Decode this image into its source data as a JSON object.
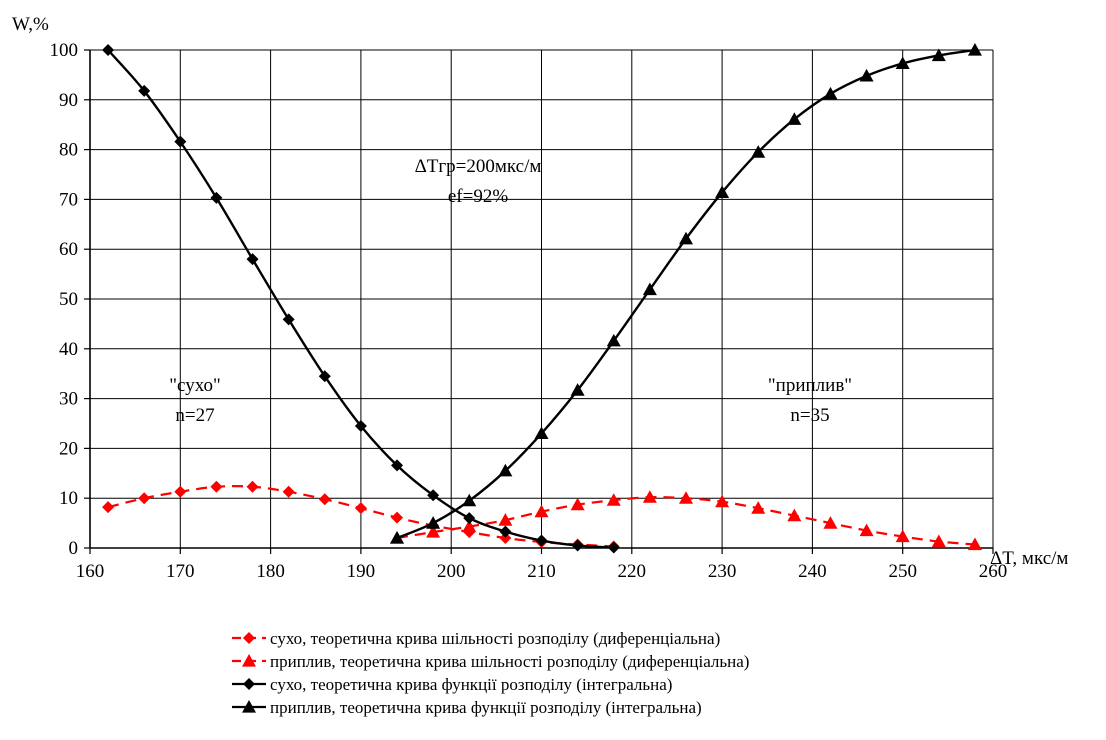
{
  "chart_data": {
    "type": "line",
    "ylabel": "W,%",
    "xlabel": "ΔT, мкс/м",
    "xlim": [
      160,
      260
    ],
    "ylim": [
      0,
      100
    ],
    "xticks": [
      "160",
      "170",
      "180",
      "190",
      "200",
      "210",
      "220",
      "230",
      "240",
      "250",
      "260"
    ],
    "yticks": [
      "0",
      "10",
      "20",
      "30",
      "40",
      "50",
      "60",
      "70",
      "80",
      "90",
      "100"
    ],
    "grid": true,
    "legend_position": "bottom",
    "annotations": {
      "threshold_line1": "ΔTгр=200мкс/м",
      "threshold_line2": "ef=92%",
      "dry_label": "\"сухо\"",
      "dry_n": "n=27",
      "inflow_label": "\"приплив\"",
      "inflow_n": "n=35"
    },
    "series": [
      {
        "name": "сухо, теоретична крива шільності розподілу (диференціальна)",
        "color": "#ff0000",
        "dashed": true,
        "marker": "diamond",
        "x": [
          162,
          166,
          170,
          174,
          178,
          182,
          186,
          190,
          194,
          198,
          202,
          206,
          210,
          214,
          218
        ],
        "y": [
          8.2,
          10.0,
          11.3,
          12.3,
          12.3,
          11.3,
          9.8,
          8.0,
          6.1,
          4.5,
          3.2,
          2.0,
          1.2,
          0.7,
          0.3
        ]
      },
      {
        "name": "приплив, теоретична крива шільності розподілу (диференціальна)",
        "color": "#ff0000",
        "dashed": true,
        "marker": "triangle",
        "x": [
          194,
          198,
          202,
          206,
          210,
          214,
          218,
          222,
          226,
          230,
          234,
          238,
          242,
          246,
          250,
          254,
          258
        ],
        "y": [
          2.0,
          3.2,
          4.3,
          5.6,
          7.3,
          8.7,
          9.6,
          10.2,
          10.0,
          9.3,
          8.0,
          6.5,
          5.0,
          3.5,
          2.3,
          1.3,
          0.7
        ]
      },
      {
        "name": "сухо, теоретична крива функції розподілу (інтегральна)",
        "color": "#000000",
        "dashed": false,
        "marker": "diamond",
        "x": [
          162,
          166,
          170,
          174,
          178,
          182,
          186,
          190,
          194,
          198,
          202,
          206,
          210,
          214,
          218
        ],
        "y": [
          100,
          91.8,
          81.6,
          70.3,
          58.0,
          45.9,
          34.5,
          24.5,
          16.6,
          10.6,
          6.0,
          3.3,
          1.5,
          0.5,
          0.1
        ]
      },
      {
        "name": "приплив, теоретична крива функції розподілу (інтегральна)",
        "color": "#000000",
        "dashed": false,
        "marker": "triangle",
        "x": [
          194,
          198,
          202,
          206,
          210,
          214,
          218,
          222,
          226,
          230,
          234,
          238,
          242,
          246,
          250,
          254,
          258
        ],
        "y": [
          2.0,
          5.0,
          9.5,
          15.5,
          23.0,
          31.7,
          41.6,
          51.9,
          62.1,
          71.4,
          79.5,
          86.1,
          91.2,
          94.8,
          97.3,
          98.9,
          100
        ]
      }
    ]
  }
}
